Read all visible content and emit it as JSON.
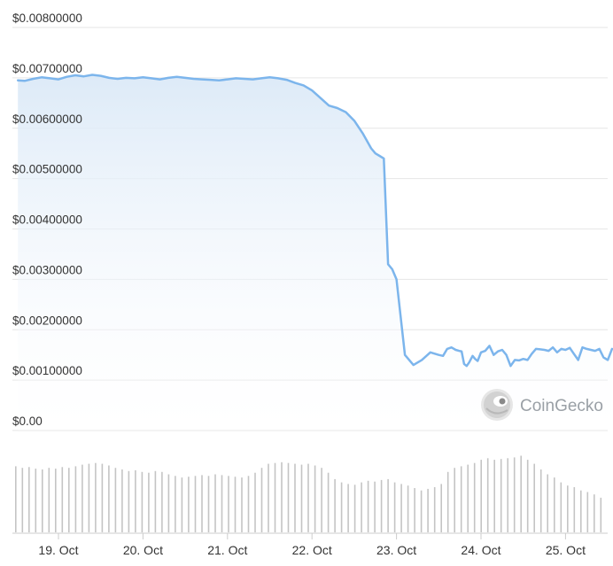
{
  "chart_data": {
    "type": "area",
    "title": "",
    "xlabel": "",
    "ylabel": "",
    "ylim": [
      0,
      0.008
    ],
    "y_ticks": [
      "$0.00",
      "$0.00100000",
      "$0.00200000",
      "$0.00300000",
      "$0.00400000",
      "$0.00500000",
      "$0.00600000",
      "$0.00700000",
      "$0.00800000"
    ],
    "y_tick_values": [
      0,
      0.001,
      0.002,
      0.003,
      0.004,
      0.005,
      0.006,
      0.007,
      0.008
    ],
    "x_ticks": [
      "19. Oct",
      "20. Oct",
      "21. Oct",
      "22. Oct",
      "23. Oct",
      "24. Oct",
      "25. Oct"
    ],
    "x_tick_days": [
      1,
      2,
      3,
      4,
      5,
      6,
      7
    ],
    "xlim_days": [
      0.52,
      7.55
    ],
    "grid": true,
    "colors": {
      "line": "#7cb5ec",
      "area_top": "#dbe9f7",
      "volume": "#c4c4c4",
      "grid": "#e6e6e6"
    },
    "price_series": {
      "name": "Price",
      "x_day": [
        0.52,
        0.6,
        0.7,
        0.8,
        0.9,
        1.0,
        1.1,
        1.2,
        1.3,
        1.4,
        1.5,
        1.6,
        1.7,
        1.8,
        1.9,
        2.0,
        2.1,
        2.2,
        2.3,
        2.4,
        2.5,
        2.6,
        2.7,
        2.8,
        2.9,
        3.0,
        3.1,
        3.2,
        3.3,
        3.4,
        3.5,
        3.6,
        3.7,
        3.8,
        3.9,
        4.0,
        4.1,
        4.2,
        4.3,
        4.4,
        4.5,
        4.6,
        4.7,
        4.75,
        4.8,
        4.85,
        4.9,
        4.95,
        5.0,
        5.1,
        5.2,
        5.3,
        5.4,
        5.5,
        5.55,
        5.6,
        5.65,
        5.7,
        5.74,
        5.77,
        5.8,
        5.83,
        5.86,
        5.9,
        5.93,
        5.96,
        6.0,
        6.05,
        6.1,
        6.15,
        6.2,
        6.25,
        6.3,
        6.35,
        6.4,
        6.45,
        6.5,
        6.55,
        6.6,
        6.65,
        6.7,
        6.75,
        6.8,
        6.85,
        6.9,
        6.95,
        7.0,
        7.05,
        7.1,
        7.15,
        7.2,
        7.25,
        7.3,
        7.35,
        7.4,
        7.45,
        7.5,
        7.55
      ],
      "values": [
        0.00695,
        0.00694,
        0.00698,
        0.00701,
        0.00699,
        0.00697,
        0.00702,
        0.00705,
        0.00703,
        0.00706,
        0.00704,
        0.007,
        0.00698,
        0.007,
        0.00699,
        0.00701,
        0.00699,
        0.00697,
        0.007,
        0.00702,
        0.007,
        0.00698,
        0.00697,
        0.00696,
        0.00695,
        0.00697,
        0.00699,
        0.00698,
        0.00697,
        0.00699,
        0.00701,
        0.00699,
        0.00696,
        0.0069,
        0.00685,
        0.00675,
        0.0066,
        0.00645,
        0.0064,
        0.00632,
        0.00615,
        0.0059,
        0.0056,
        0.0055,
        0.00545,
        0.0054,
        0.0033,
        0.0032,
        0.003,
        0.0015,
        0.0013,
        0.0014,
        0.00155,
        0.0015,
        0.00148,
        0.00162,
        0.00165,
        0.0016,
        0.00158,
        0.00157,
        0.00132,
        0.00128,
        0.00135,
        0.00148,
        0.00142,
        0.00138,
        0.00155,
        0.00158,
        0.00168,
        0.0015,
        0.00157,
        0.0016,
        0.0015,
        0.00128,
        0.0014,
        0.00139,
        0.00142,
        0.0014,
        0.00152,
        0.00162,
        0.00161,
        0.0016,
        0.00158,
        0.00165,
        0.00155,
        0.00162,
        0.0016,
        0.00164,
        0.00152,
        0.0014,
        0.00165,
        0.00162,
        0.0016,
        0.00158,
        0.00162,
        0.00145,
        0.0014,
        0.00162
      ]
    },
    "volume_series": {
      "name": "Volume",
      "relative_values": [
        0.82,
        0.8,
        0.81,
        0.79,
        0.78,
        0.8,
        0.79,
        0.81,
        0.8,
        0.82,
        0.84,
        0.85,
        0.86,
        0.85,
        0.83,
        0.8,
        0.78,
        0.76,
        0.77,
        0.75,
        0.74,
        0.76,
        0.75,
        0.72,
        0.7,
        0.68,
        0.69,
        0.7,
        0.71,
        0.7,
        0.72,
        0.71,
        0.7,
        0.69,
        0.68,
        0.7,
        0.74,
        0.8,
        0.85,
        0.86,
        0.87,
        0.86,
        0.85,
        0.84,
        0.85,
        0.83,
        0.8,
        0.74,
        0.66,
        0.62,
        0.6,
        0.59,
        0.62,
        0.64,
        0.63,
        0.65,
        0.66,
        0.62,
        0.6,
        0.58,
        0.55,
        0.52,
        0.54,
        0.56,
        0.6,
        0.75,
        0.8,
        0.82,
        0.84,
        0.86,
        0.9,
        0.92,
        0.9,
        0.91,
        0.92,
        0.93,
        0.95,
        0.9,
        0.85,
        0.78,
        0.72,
        0.68,
        0.62,
        0.58,
        0.56,
        0.52,
        0.5,
        0.47,
        0.43
      ]
    },
    "watermark": {
      "text": "CoinGecko",
      "icon": "gecko-logo-icon"
    }
  }
}
